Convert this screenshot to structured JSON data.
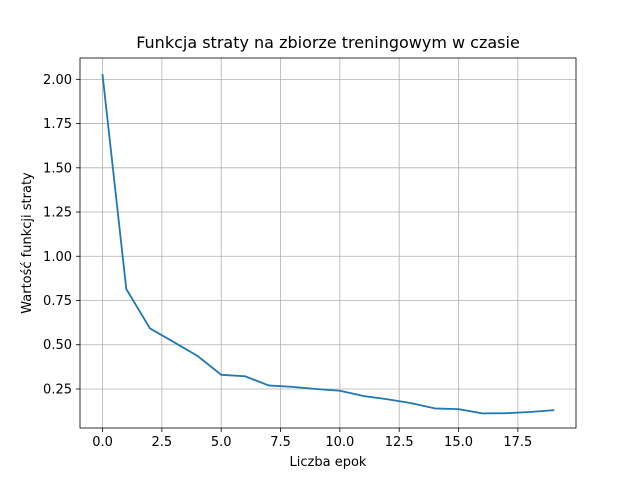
{
  "chart_data": {
    "type": "line",
    "title": "Funkcja straty na zbiorze treningowym w czasie",
    "xlabel": "Liczba epok",
    "ylabel": "Wartość funkcji straty",
    "xlim": [
      -0.95,
      19.95
    ],
    "ylim": [
      0.0294,
      2.1206
    ],
    "x_ticks": [
      0.0,
      2.5,
      5.0,
      7.5,
      10.0,
      12.5,
      15.0,
      17.5
    ],
    "x_tick_labels": [
      "0.0",
      "2.5",
      "5.0",
      "7.5",
      "10.0",
      "12.5",
      "15.0",
      "17.5"
    ],
    "y_ticks": [
      0.25,
      0.5,
      0.75,
      1.0,
      1.25,
      1.5,
      1.75,
      2.0
    ],
    "y_tick_labels": [
      "0.25",
      "0.50",
      "0.75",
      "1.00",
      "1.25",
      "1.50",
      "1.75",
      "2.00"
    ],
    "grid": true,
    "legend": "none",
    "series": [
      {
        "color": "#1f77b4",
        "x": [
          0,
          1,
          2,
          3,
          4,
          5,
          6,
          7,
          8,
          9,
          10,
          11,
          12,
          13,
          14,
          15,
          16,
          17,
          18,
          19
        ],
        "values": [
          2.025,
          0.815,
          0.592,
          0.515,
          0.437,
          0.33,
          0.322,
          0.27,
          0.262,
          0.25,
          0.24,
          0.21,
          0.192,
          0.17,
          0.14,
          0.136,
          0.112,
          0.113,
          0.12,
          0.13
        ]
      }
    ]
  }
}
